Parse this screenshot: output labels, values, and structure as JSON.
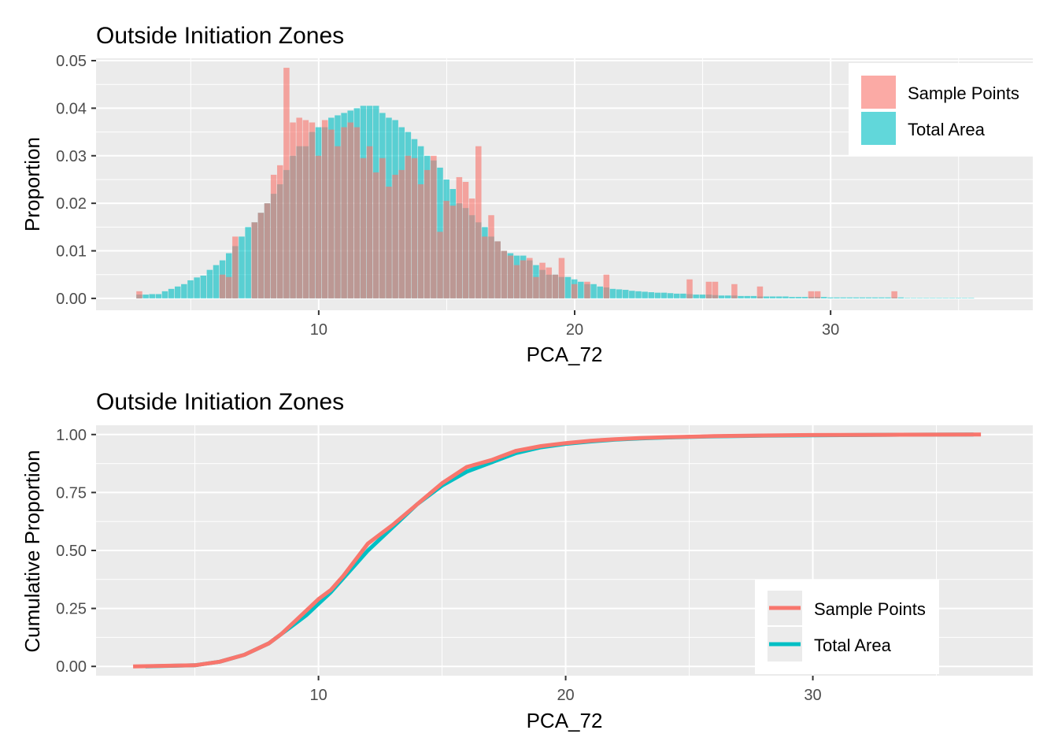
{
  "colors": {
    "sample": "#F8766D",
    "total": "#00BFC4",
    "panel_bg": "#EBEBEB",
    "grid": "#FFFFFF"
  },
  "chart_data": [
    {
      "type": "bar",
      "title": "Outside Initiation Zones",
      "xlabel": "PCA_72",
      "ylabel": "Proportion",
      "xlim": [
        1.3,
        37.9
      ],
      "ylim": [
        -0.0025,
        0.0505
      ],
      "x_ticks": [
        "10",
        "20",
        "30"
      ],
      "x_tick_values": [
        10,
        20,
        30
      ],
      "y_ticks": [
        "0.00",
        "0.01",
        "0.02",
        "0.03",
        "0.04",
        "0.05"
      ],
      "y_tick_values": [
        0,
        0.01,
        0.02,
        0.03,
        0.04,
        0.05
      ],
      "grid": true,
      "legend_placement": "top-right",
      "legend": [
        "Sample Points",
        "Total Area"
      ],
      "bin_width": 0.25,
      "series": [
        {
          "name": "Sample Points",
          "color": "#F8766D",
          "x": [
            3.0,
            6.25,
            6.5,
            6.75,
            7.5,
            7.75,
            8.0,
            8.25,
            8.5,
            8.75,
            9.0,
            9.25,
            9.5,
            9.75,
            10.0,
            10.25,
            10.5,
            10.75,
            11.0,
            11.25,
            11.5,
            11.75,
            12.0,
            12.25,
            12.5,
            12.75,
            13.0,
            13.25,
            13.5,
            13.75,
            14.0,
            14.25,
            14.5,
            14.75,
            15.0,
            15.25,
            15.5,
            15.75,
            16.0,
            16.25,
            16.5,
            16.75,
            17.0,
            17.25,
            17.5,
            17.75,
            18.0,
            18.25,
            18.5,
            18.75,
            19.0,
            19.25,
            19.5,
            20.0,
            20.5,
            21.25,
            24.5,
            25.25,
            25.5,
            26.25,
            27.25,
            29.25,
            29.5,
            32.5
          ],
          "values": [
            0.0015,
            0.005,
            0.0045,
            0.013,
            0.016,
            0.018,
            0.02,
            0.026,
            0.028,
            0.0485,
            0.037,
            0.038,
            0.0375,
            0.037,
            0.03,
            0.0375,
            0.0355,
            0.032,
            0.036,
            0.037,
            0.036,
            0.0295,
            0.032,
            0.0265,
            0.0295,
            0.0235,
            0.026,
            0.027,
            0.03,
            0.0295,
            0.024,
            0.027,
            0.03,
            0.014,
            0.0205,
            0.0195,
            0.0255,
            0.0245,
            0.021,
            0.032,
            0.013,
            0.0175,
            0.012,
            0.01,
            0.009,
            0.007,
            0.008,
            0.0085,
            0.0045,
            0.0075,
            0.0065,
            0.005,
            0.0085,
            0.003,
            0.0035,
            0.005,
            0.004,
            0.0035,
            0.0035,
            0.003,
            0.0025,
            0.0015,
            0.0015,
            0.0015
          ]
        },
        {
          "name": "Total Area",
          "color": "#00BFC4",
          "x": [
            3.0,
            3.25,
            3.5,
            3.75,
            4.0,
            4.25,
            4.5,
            4.75,
            5.0,
            5.25,
            5.5,
            5.75,
            6.0,
            6.25,
            6.5,
            6.75,
            7.0,
            7.25,
            7.5,
            7.75,
            8.0,
            8.25,
            8.5,
            8.75,
            9.0,
            9.25,
            9.5,
            9.75,
            10.0,
            10.25,
            10.5,
            10.75,
            11.0,
            11.25,
            11.5,
            11.75,
            12.0,
            12.25,
            12.5,
            12.75,
            13.0,
            13.25,
            13.5,
            13.75,
            14.0,
            14.25,
            14.5,
            14.75,
            15.0,
            15.25,
            15.5,
            15.75,
            16.0,
            16.25,
            16.5,
            16.75,
            17.0,
            17.25,
            17.5,
            17.75,
            18.0,
            18.25,
            18.5,
            18.75,
            19.0,
            19.25,
            19.5,
            19.75,
            20.0,
            20.25,
            20.5,
            20.75,
            21.0,
            21.25,
            21.5,
            21.75,
            22.0,
            22.25,
            22.5,
            22.75,
            23.0,
            23.25,
            23.5,
            23.75,
            24.0,
            24.25,
            24.5,
            24.75,
            25.0,
            25.25,
            25.5,
            25.75,
            26.0,
            26.25,
            26.5,
            26.75,
            27.0,
            27.25,
            27.5,
            27.75,
            28.0,
            28.25,
            28.5,
            28.75,
            29.0,
            29.25,
            29.5,
            29.75,
            30.0,
            30.25,
            30.5,
            30.75,
            31.0,
            31.25,
            31.5,
            31.75,
            32.0,
            32.25,
            32.5,
            32.75,
            33.0,
            33.25,
            33.5,
            33.75,
            34.0,
            34.25,
            34.5,
            34.75,
            35.0,
            35.25,
            35.5
          ],
          "values": [
            0.0008,
            0.0008,
            0.0009,
            0.0009,
            0.0015,
            0.002,
            0.0025,
            0.003,
            0.0038,
            0.0044,
            0.0048,
            0.006,
            0.007,
            0.008,
            0.0095,
            0.011,
            0.013,
            0.015,
            0.016,
            0.018,
            0.02,
            0.022,
            0.024,
            0.027,
            0.03,
            0.032,
            0.032,
            0.035,
            0.036,
            0.036,
            0.038,
            0.0385,
            0.039,
            0.0395,
            0.04,
            0.0405,
            0.0405,
            0.0405,
            0.039,
            0.038,
            0.0375,
            0.036,
            0.035,
            0.0335,
            0.032,
            0.03,
            0.029,
            0.0275,
            0.025,
            0.023,
            0.02,
            0.019,
            0.0175,
            0.016,
            0.015,
            0.013,
            0.012,
            0.01,
            0.0095,
            0.009,
            0.009,
            0.008,
            0.007,
            0.006,
            0.005,
            0.005,
            0.0045,
            0.0045,
            0.004,
            0.0035,
            0.003,
            0.003,
            0.0025,
            0.0023,
            0.002,
            0.0019,
            0.0018,
            0.0016,
            0.0015,
            0.0014,
            0.0013,
            0.0012,
            0.0012,
            0.0011,
            0.001,
            0.001,
            0.0009,
            0.0008,
            0.0008,
            0.0008,
            0.0007,
            0.0006,
            0.0006,
            0.0006,
            0.0005,
            0.0005,
            0.0005,
            0.0004,
            0.0004,
            0.0004,
            0.0004,
            0.0004,
            0.0003,
            0.0003,
            0.0003,
            0.0003,
            0.0003,
            0.0003,
            0.0002,
            0.0002,
            0.0002,
            0.0002,
            0.0002,
            0.0002,
            0.0002,
            0.0002,
            0.0002,
            0.0002,
            0.0002,
            0.0002,
            0.0001,
            0.0001,
            0.0001,
            0.0001,
            0.0001,
            0.0001,
            0.0001,
            0.0001,
            0.0001,
            0.0001,
            0.0001
          ]
        }
      ]
    },
    {
      "type": "line",
      "title": "Outside Initiation Zones",
      "xlabel": "PCA_72",
      "ylabel": "Cumulative Proportion",
      "xlim": [
        1.0,
        38.9
      ],
      "ylim": [
        -0.04,
        1.04
      ],
      "x_ticks": [
        "10",
        "20",
        "30"
      ],
      "x_tick_values": [
        10,
        20,
        30
      ],
      "y_ticks": [
        "0.00",
        "0.25",
        "0.50",
        "0.75",
        "1.00"
      ],
      "y_tick_values": [
        0,
        0.25,
        0.5,
        0.75,
        1.0
      ],
      "grid": true,
      "legend_placement": "bottom-right",
      "legend": [
        "Sample Points",
        "Total Area"
      ],
      "series": [
        {
          "name": "Total Area",
          "color": "#00BFC4",
          "x": [
            3,
            5,
            6,
            7,
            8,
            8.5,
            9,
            9.5,
            10,
            10.5,
            11,
            11.5,
            12,
            12.5,
            13,
            14,
            15,
            16,
            17,
            18,
            19,
            20,
            21,
            22,
            23,
            24,
            26,
            28,
            30,
            33,
            36.5
          ],
          "y": [
            0.0,
            0.005,
            0.02,
            0.05,
            0.1,
            0.14,
            0.18,
            0.22,
            0.27,
            0.32,
            0.38,
            0.44,
            0.5,
            0.55,
            0.6,
            0.7,
            0.78,
            0.84,
            0.88,
            0.92,
            0.945,
            0.96,
            0.97,
            0.978,
            0.983,
            0.987,
            0.992,
            0.995,
            0.997,
            0.999,
            1.0
          ]
        },
        {
          "name": "Sample Points",
          "color": "#F8766D",
          "x": [
            2.5,
            5,
            6,
            7,
            8,
            8.5,
            9,
            9.5,
            10,
            10.5,
            11,
            11.5,
            12,
            12.5,
            13,
            14,
            15,
            16,
            17,
            18,
            19,
            20,
            21,
            22,
            23,
            24,
            26,
            28,
            30,
            33,
            36.8
          ],
          "y": [
            0.0,
            0.005,
            0.02,
            0.05,
            0.1,
            0.14,
            0.19,
            0.24,
            0.29,
            0.33,
            0.39,
            0.46,
            0.53,
            0.57,
            0.61,
            0.7,
            0.79,
            0.86,
            0.89,
            0.93,
            0.95,
            0.963,
            0.973,
            0.98,
            0.985,
            0.988,
            0.993,
            0.996,
            0.998,
            0.999,
            1.0
          ]
        }
      ]
    }
  ]
}
